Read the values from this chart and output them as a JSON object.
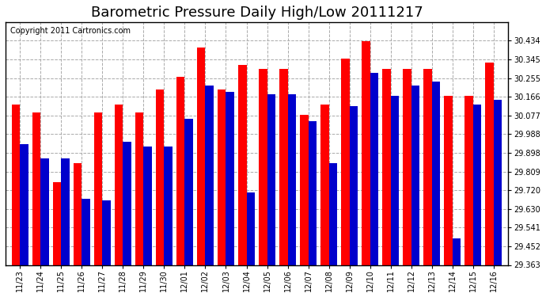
{
  "title": "Barometric Pressure Daily High/Low 20111217",
  "copyright": "Copyright 2011 Cartronics.com",
  "dates": [
    "11/23",
    "11/24",
    "11/25",
    "11/26",
    "11/27",
    "11/28",
    "11/29",
    "11/30",
    "12/01",
    "12/02",
    "12/03",
    "12/04",
    "12/05",
    "12/06",
    "12/07",
    "12/08",
    "12/09",
    "12/10",
    "12/11",
    "12/12",
    "12/13",
    "12/14",
    "12/15",
    "12/16"
  ],
  "highs": [
    30.13,
    30.09,
    29.76,
    29.85,
    30.09,
    30.13,
    30.09,
    30.2,
    30.26,
    30.4,
    30.2,
    30.32,
    30.3,
    30.3,
    30.08,
    30.13,
    30.35,
    30.43,
    30.3,
    30.3,
    30.3,
    30.17,
    30.17,
    30.33
  ],
  "lows": [
    29.94,
    29.87,
    29.87,
    29.68,
    29.67,
    29.95,
    29.93,
    29.93,
    30.06,
    30.22,
    30.19,
    29.71,
    30.18,
    30.18,
    30.05,
    29.85,
    30.12,
    30.28,
    30.17,
    30.22,
    30.24,
    29.49,
    30.13,
    30.15
  ],
  "high_color": "#FF0000",
  "low_color": "#0000CC",
  "background_color": "#FFFFFF",
  "grid_color": "#AAAAAA",
  "ylim_min": 29.363,
  "ylim_max": 30.523,
  "yticks": [
    29.363,
    29.452,
    29.541,
    29.63,
    29.72,
    29.809,
    29.898,
    29.988,
    30.077,
    30.166,
    30.255,
    30.345,
    30.434
  ],
  "title_fontsize": 13,
  "tick_fontsize": 7,
  "copyright_fontsize": 7
}
